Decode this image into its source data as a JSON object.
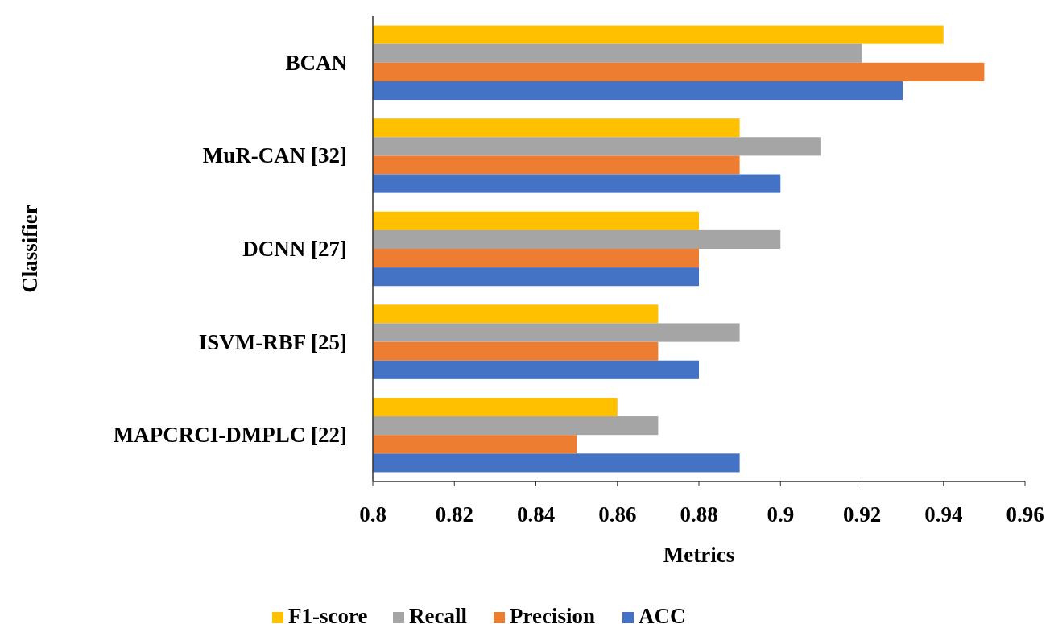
{
  "chart_data": {
    "type": "bar",
    "orientation": "horizontal",
    "xlabel": "Metrics",
    "ylabel": "Classifier",
    "categories": [
      "BCAN",
      "MuR-CAN [32]",
      "DCNN [27]",
      "ISVM-RBF [25]",
      "MAPCRCI-DMPLC [22]"
    ],
    "series": [
      {
        "name": "F1-score",
        "color": "#ffc000",
        "values": [
          0.94,
          0.89,
          0.88,
          0.87,
          0.86
        ]
      },
      {
        "name": "Recall",
        "color": "#a5a5a5",
        "values": [
          0.92,
          0.91,
          0.9,
          0.89,
          0.87
        ]
      },
      {
        "name": "Precision",
        "color": "#ed7d31",
        "values": [
          0.95,
          0.89,
          0.88,
          0.87,
          0.85
        ]
      },
      {
        "name": "ACC",
        "color": "#4472c4",
        "values": [
          0.93,
          0.9,
          0.88,
          0.88,
          0.89
        ]
      }
    ],
    "xlim": [
      0.8,
      0.96
    ],
    "xticks": [
      0.8,
      0.82,
      0.84,
      0.86,
      0.88,
      0.9,
      0.92,
      0.94,
      0.96
    ],
    "grid": false,
    "legend": "bottom"
  }
}
